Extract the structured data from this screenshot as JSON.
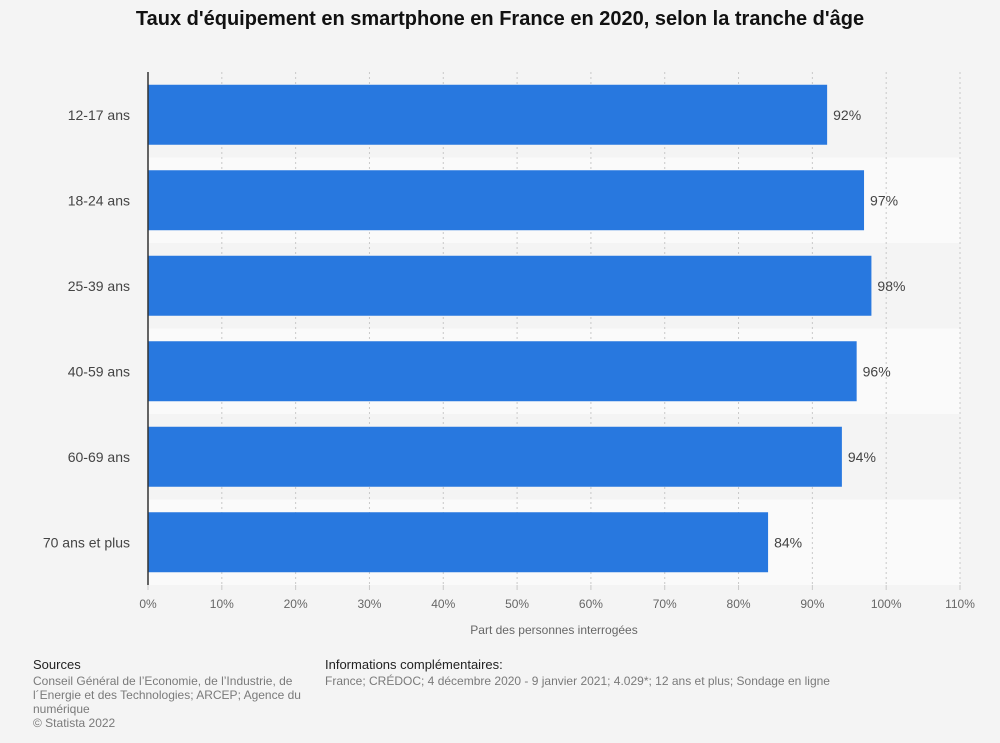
{
  "chart_data": {
    "type": "bar",
    "orientation": "horizontal",
    "title": "Taux d'équipement en smartphone en France en 2020, selon la tranche d'âge",
    "categories": [
      "12-17 ans",
      "18-24 ans",
      "25-39 ans",
      "40-59 ans",
      "60-69 ans",
      "70 ans et plus"
    ],
    "values": [
      92,
      97,
      98,
      96,
      94,
      84
    ],
    "data_labels": [
      "92%",
      "97%",
      "98%",
      "96%",
      "94%",
      "84%"
    ],
    "xlabel": "Part des personnes interrogées",
    "ylabel": "",
    "xlim": [
      0,
      110
    ],
    "x_ticks": [
      0,
      10,
      20,
      30,
      40,
      50,
      60,
      70,
      80,
      90,
      100,
      110
    ],
    "x_tick_labels": [
      "0%",
      "10%",
      "20%",
      "30%",
      "40%",
      "50%",
      "60%",
      "70%",
      "80%",
      "90%",
      "100%",
      "110%"
    ],
    "grid": true,
    "colors": {
      "bar": "#2878df",
      "band": "#fafafa",
      "grid": "#c9c9c9",
      "axis": "#333333"
    }
  },
  "footer": {
    "sources_title": "Sources",
    "sources_lines": [
      "Conseil Général de l’Economie, de l’Industrie, de",
      "l´Energie et des Technologies; ARCEP; Agence du",
      "numérique",
      "© Statista 2022"
    ],
    "info_title": "Informations complémentaires:",
    "info_text": "France; CRÉDOC; 4 décembre 2020 - 9 janvier 2021; 4.029*; 12 ans et plus; Sondage en ligne"
  }
}
